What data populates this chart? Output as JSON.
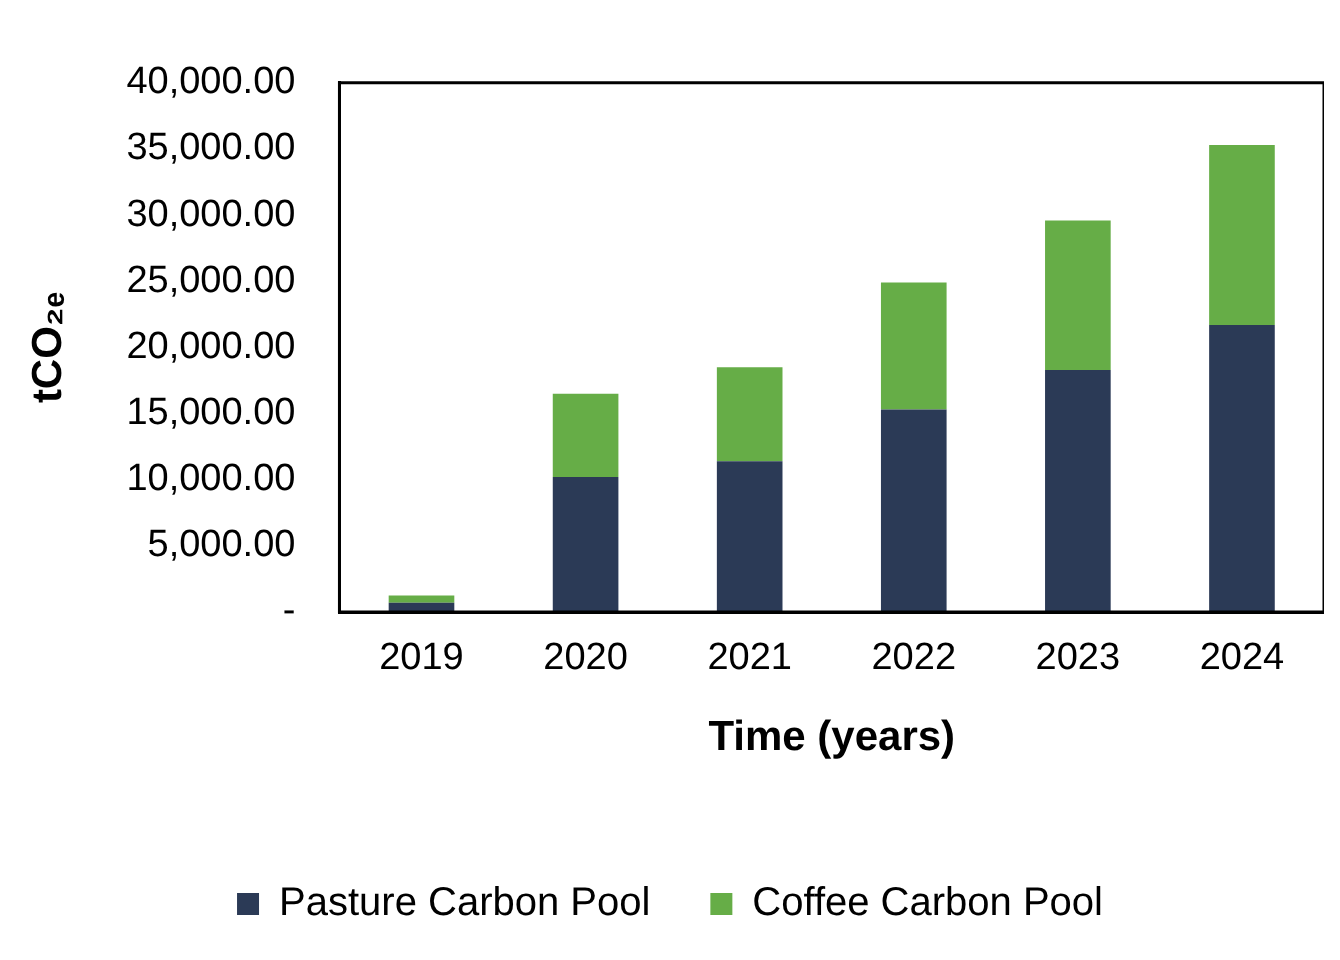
{
  "chart_data": {
    "type": "bar",
    "stacked": true,
    "xlabel": "Time (years)",
    "ylabel": "tCO₂ₑ",
    "categories": [
      "2019",
      "2020",
      "2021",
      "2022",
      "2023",
      "2024"
    ],
    "series": [
      {
        "name": "Pasture Carbon Pool",
        "color": "#2b3a56",
        "values": [
          700,
          10200,
          11400,
          15300,
          18300,
          21700
        ]
      },
      {
        "name": "Coffee Carbon Pool",
        "color": "#66ad47",
        "values": [
          550,
          6300,
          7100,
          9600,
          11300,
          13600
        ]
      }
    ],
    "ylim": [
      0,
      40000
    ],
    "yticks": [
      {
        "value": 0,
        "label": "-"
      },
      {
        "value": 5000,
        "label": "5,000.00"
      },
      {
        "value": 10000,
        "label": "10,000.00"
      },
      {
        "value": 15000,
        "label": "15,000.00"
      },
      {
        "value": 20000,
        "label": "20,000.00"
      },
      {
        "value": 25000,
        "label": "25,000.00"
      },
      {
        "value": 30000,
        "label": "30,000.00"
      },
      {
        "value": 35000,
        "label": "35,000.00"
      },
      {
        "value": 40000,
        "label": "40,000.00"
      }
    ],
    "grid": false,
    "legend": "bottom"
  }
}
